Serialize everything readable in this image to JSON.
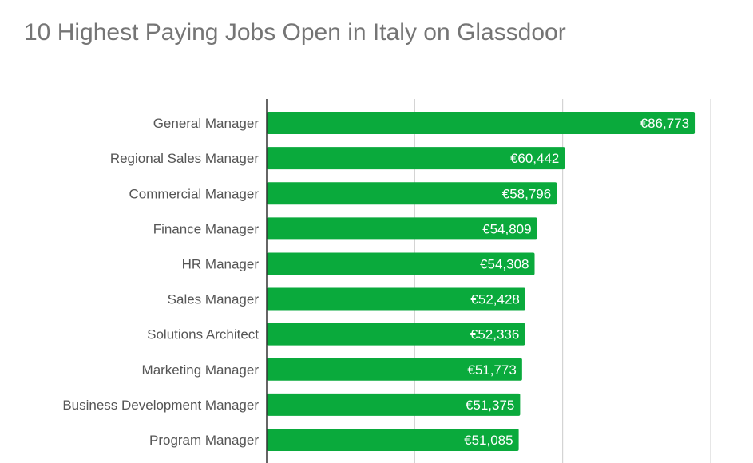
{
  "title": "10 Highest Paying Jobs Open in Italy on Glassdoor",
  "colors": {
    "bar": "#0aaa3c",
    "grid": "#cccccc",
    "axis": "#333333",
    "title": "#757575",
    "category_text": "#555555",
    "value_text": "#ffffff"
  },
  "chart_data": {
    "type": "bar",
    "orientation": "horizontal",
    "title": "10 Highest Paying Jobs Open in Italy on Glassdoor",
    "xlabel": "",
    "ylabel": "",
    "xlim": [
      0,
      90000
    ],
    "gridlines": [
      0,
      30000,
      60000,
      90000
    ],
    "grid": true,
    "legend": "none",
    "categories": [
      "General Manager",
      "Regional Sales Manager",
      "Commercial Manager",
      "Finance Manager",
      "HR Manager",
      "Sales Manager",
      "Solutions Architect",
      "Marketing Manager",
      "Business Development Manager",
      "Program Manager"
    ],
    "values": [
      86773,
      60442,
      58796,
      54809,
      54308,
      52428,
      52336,
      51773,
      51375,
      51085
    ],
    "value_labels": [
      "€86,773",
      "€60,442",
      "€58,796",
      "€54,809",
      "€54,308",
      "€52,428",
      "€52,336",
      "€51,773",
      "€51,375",
      "€51,085"
    ]
  }
}
